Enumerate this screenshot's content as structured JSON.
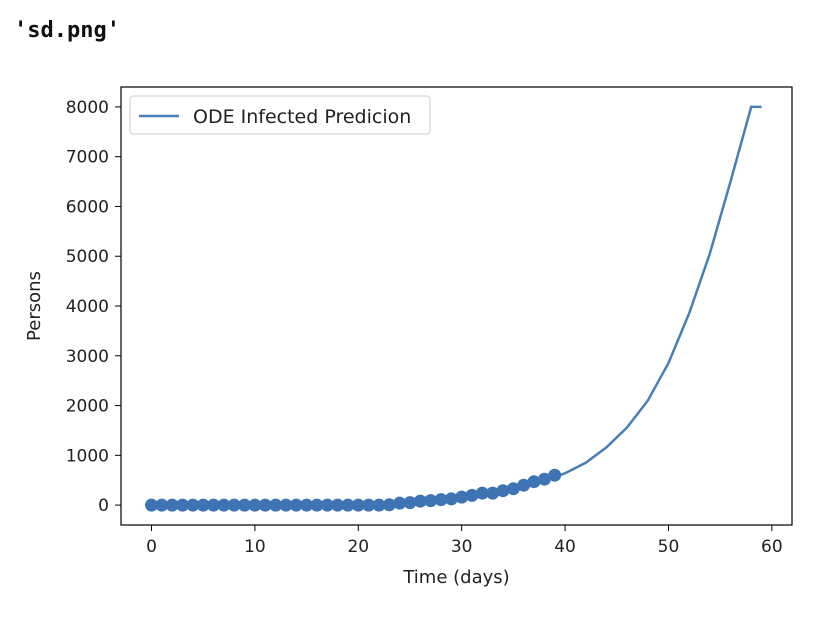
{
  "output_text": "'sd.png'",
  "chart_data": {
    "type": "line",
    "title": "",
    "xlabel": "Time (days)",
    "ylabel": "Persons",
    "xlim": [
      -2.95,
      61.95
    ],
    "ylim": [
      -400,
      8400
    ],
    "x_ticks": [
      0,
      10,
      20,
      30,
      40,
      50,
      60
    ],
    "y_ticks": [
      0,
      1000,
      2000,
      3000,
      4000,
      5000,
      6000,
      7000,
      8000
    ],
    "grid": false,
    "legend": {
      "position": "top-left",
      "entries": [
        "ODE Infected Predicion"
      ]
    },
    "series": [
      {
        "name": "ODE Infected Predicion",
        "kind": "line",
        "color": "#4a7fb5",
        "x": [
          0,
          5,
          10,
          15,
          20,
          22,
          24,
          26,
          28,
          30,
          32,
          34,
          36,
          38,
          40,
          42,
          44,
          46,
          48,
          50,
          52,
          54,
          56,
          58,
          59
        ],
        "y": [
          0,
          0,
          0,
          5,
          10,
          15,
          35,
          70,
          110,
          160,
          220,
          290,
          380,
          480,
          640,
          850,
          1160,
          1560,
          2100,
          2850,
          3850,
          5050,
          6500,
          8000,
          8000
        ]
      },
      {
        "name": "",
        "kind": "scatter",
        "color": "#3f74b4",
        "x": [
          0,
          1,
          2,
          3,
          4,
          5,
          6,
          7,
          8,
          9,
          10,
          11,
          12,
          13,
          14,
          15,
          16,
          17,
          18,
          19,
          20,
          21,
          22,
          23,
          24,
          25,
          26,
          27,
          28,
          29,
          30,
          31,
          32,
          33,
          34,
          35,
          36,
          37,
          38,
          39
        ],
        "y": [
          0,
          0,
          0,
          0,
          0,
          0,
          0,
          0,
          0,
          0,
          0,
          0,
          0,
          0,
          0,
          0,
          0,
          0,
          0,
          0,
          0,
          0,
          0,
          5,
          40,
          50,
          80,
          90,
          110,
          125,
          160,
          195,
          240,
          240,
          290,
          330,
          400,
          470,
          520,
          600
        ]
      }
    ]
  }
}
